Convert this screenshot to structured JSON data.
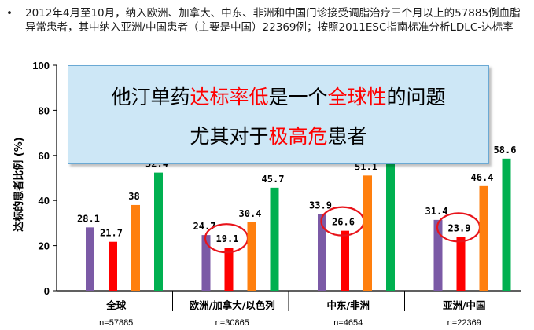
{
  "intro": {
    "bullet": "•",
    "text": "2012年4月至10月，纳入欧洲、加拿大、中东、非洲和中国门诊接受调脂治疗三个月以上的57885例血脂异常患者，其中纳入亚洲/中国患者（主要是中国）22369例；按照2011ESC指南标准分析LDLC-达标率"
  },
  "callout": {
    "line1": [
      {
        "text": "他汀单药",
        "highlight": false
      },
      {
        "text": "达标率低",
        "highlight": true
      },
      {
        "text": "是一个",
        "highlight": false
      },
      {
        "text": "全球性",
        "highlight": true
      },
      {
        "text": "的问题",
        "highlight": false
      }
    ],
    "line2": [
      {
        "text": "尤其对于",
        "highlight": false
      },
      {
        "text": "极高危",
        "highlight": true
      },
      {
        "text": "患者",
        "highlight": false
      }
    ]
  },
  "colors": {
    "series": [
      "#7b5aa6",
      "#ff0000",
      "#ff7f0e",
      "#00b050"
    ],
    "circle": "#e8141b",
    "axis": "#000000",
    "grid": "#d9d9d9"
  },
  "chart_data": {
    "type": "bar",
    "title": "",
    "xlabel": "",
    "ylabel": "达标的患者比例 (%)",
    "ylim": [
      0,
      100
    ],
    "yticks": [
      0,
      20,
      40,
      60,
      80,
      100
    ],
    "categories": [
      "全球",
      "欧洲/加拿大/以色列",
      "中东/非洲",
      "亚洲/中国"
    ],
    "counts": [
      "n=57885",
      "n=30865",
      "n=4654",
      "n=22369"
    ],
    "series": [
      {
        "values": [
          28.1,
          24.7,
          33.9,
          31.4
        ]
      },
      {
        "values": [
          21.7,
          19.1,
          26.6,
          23.9
        ]
      },
      {
        "values": [
          38,
          30.4,
          51.1,
          46.4
        ]
      },
      {
        "values": [
          52.4,
          45.7,
          59.0,
          58.6
        ]
      }
    ],
    "value_labels": [
      [
        "28.1",
        "24.7",
        "33.9",
        "31.4"
      ],
      [
        "21.7",
        "19.1",
        "26.6",
        "23.9"
      ],
      [
        "38",
        "30.4",
        "51.1",
        "46.4"
      ],
      [
        "52.4",
        "45.7",
        "",
        "58.6"
      ]
    ],
    "circled_series": 1,
    "circled_categories": [
      1,
      2,
      3
    ]
  }
}
